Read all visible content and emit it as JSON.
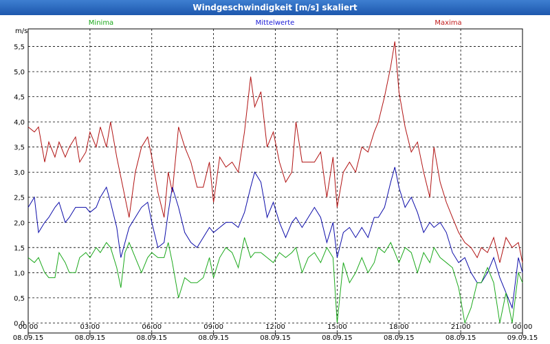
{
  "window": {
    "title": "Windgeschwindigkeit [m/s] skaliert"
  },
  "chart_data": {
    "type": "line",
    "title": "Windgeschwindigkeit [m/s] skaliert",
    "ylabel": "m/s",
    "xlabel": "",
    "ylim": [
      -0.2,
      5.85
    ],
    "xlim": [
      0,
      24
    ],
    "grid": true,
    "y_ticks": [
      {
        "value": 0.0,
        "label": "0,0"
      },
      {
        "value": 0.5,
        "label": "0,5"
      },
      {
        "value": 1.0,
        "label": "1,0"
      },
      {
        "value": 1.5,
        "label": "1,5"
      },
      {
        "value": 2.0,
        "label": "2,0"
      },
      {
        "value": 2.5,
        "label": "2,5"
      },
      {
        "value": 3.0,
        "label": "3,0"
      },
      {
        "value": 3.5,
        "label": "3,5"
      },
      {
        "value": 4.0,
        "label": "4,0"
      },
      {
        "value": 4.5,
        "label": "4,5"
      },
      {
        "value": 5.0,
        "label": "5,0"
      },
      {
        "value": 5.5,
        "label": "5,5"
      }
    ],
    "x_ticks": [
      {
        "value": 0,
        "time": "00:00",
        "date": "08.09.15"
      },
      {
        "value": 3,
        "time": "03:00",
        "date": "08.09.15"
      },
      {
        "value": 6,
        "time": "06:00",
        "date": "08.09.15"
      },
      {
        "value": 9,
        "time": "09:00",
        "date": "08.09.15"
      },
      {
        "value": 12,
        "time": "12:00",
        "date": "08.09.15"
      },
      {
        "value": 15,
        "time": "15:00",
        "date": "08.09.15"
      },
      {
        "value": 18,
        "time": "18:00",
        "date": "08.09.15"
      },
      {
        "value": 21,
        "time": "21:00",
        "date": "08.09.15"
      },
      {
        "value": 24,
        "time": "00:00",
        "date": "09.09.15"
      }
    ],
    "legend": [
      {
        "name": "Minima",
        "color": "#1aa81a",
        "position": "left"
      },
      {
        "name": "Mittelwerte",
        "color": "#1a1ad6",
        "position": "center"
      },
      {
        "name": "Maxima",
        "color": "#c01a1a",
        "position": "right"
      }
    ],
    "series": [
      {
        "name": "Maxima",
        "color": "#b01010",
        "points": [
          [
            0,
            3.9
          ],
          [
            0.3,
            3.8
          ],
          [
            0.5,
            3.9
          ],
          [
            0.8,
            3.2
          ],
          [
            1.0,
            3.6
          ],
          [
            1.3,
            3.3
          ],
          [
            1.5,
            3.6
          ],
          [
            1.8,
            3.3
          ],
          [
            2.0,
            3.5
          ],
          [
            2.3,
            3.7
          ],
          [
            2.5,
            3.2
          ],
          [
            2.8,
            3.4
          ],
          [
            3.0,
            3.8
          ],
          [
            3.3,
            3.5
          ],
          [
            3.5,
            3.9
          ],
          [
            3.8,
            3.5
          ],
          [
            4.0,
            4.0
          ],
          [
            4.3,
            3.3
          ],
          [
            4.5,
            2.9
          ],
          [
            4.7,
            2.5
          ],
          [
            4.9,
            2.1
          ],
          [
            5.2,
            3.0
          ],
          [
            5.5,
            3.5
          ],
          [
            5.8,
            3.7
          ],
          [
            6.0,
            3.3
          ],
          [
            6.3,
            2.6
          ],
          [
            6.6,
            2.1
          ],
          [
            6.8,
            3.0
          ],
          [
            7.0,
            2.6
          ],
          [
            7.3,
            3.9
          ],
          [
            7.6,
            3.5
          ],
          [
            7.9,
            3.2
          ],
          [
            8.2,
            2.7
          ],
          [
            8.5,
            2.7
          ],
          [
            8.8,
            3.2
          ],
          [
            9.0,
            2.4
          ],
          [
            9.3,
            3.3
          ],
          [
            9.6,
            3.1
          ],
          [
            9.9,
            3.2
          ],
          [
            10.2,
            3.0
          ],
          [
            10.5,
            3.8
          ],
          [
            10.8,
            4.9
          ],
          [
            11.0,
            4.3
          ],
          [
            11.3,
            4.6
          ],
          [
            11.6,
            3.5
          ],
          [
            11.9,
            3.8
          ],
          [
            12.2,
            3.2
          ],
          [
            12.5,
            2.8
          ],
          [
            12.8,
            3.0
          ],
          [
            13.0,
            4.0
          ],
          [
            13.3,
            3.2
          ],
          [
            13.6,
            3.2
          ],
          [
            13.9,
            3.2
          ],
          [
            14.2,
            3.4
          ],
          [
            14.5,
            2.5
          ],
          [
            14.8,
            3.3
          ],
          [
            15.0,
            2.3
          ],
          [
            15.3,
            3.0
          ],
          [
            15.6,
            3.2
          ],
          [
            15.9,
            3.0
          ],
          [
            16.2,
            3.5
          ],
          [
            16.5,
            3.4
          ],
          [
            16.8,
            3.8
          ],
          [
            17.0,
            4.0
          ],
          [
            17.3,
            4.5
          ],
          [
            17.6,
            5.1
          ],
          [
            17.8,
            5.6
          ],
          [
            18.0,
            4.6
          ],
          [
            18.3,
            3.9
          ],
          [
            18.6,
            3.4
          ],
          [
            18.9,
            3.6
          ],
          [
            19.2,
            3.0
          ],
          [
            19.5,
            2.5
          ],
          [
            19.7,
            3.5
          ],
          [
            20.0,
            2.8
          ],
          [
            20.3,
            2.4
          ],
          [
            20.6,
            2.1
          ],
          [
            20.9,
            1.8
          ],
          [
            21.2,
            1.6
          ],
          [
            21.5,
            1.5
          ],
          [
            21.8,
            1.3
          ],
          [
            22.0,
            1.5
          ],
          [
            22.3,
            1.4
          ],
          [
            22.6,
            1.7
          ],
          [
            22.9,
            1.2
          ],
          [
            23.2,
            1.7
          ],
          [
            23.5,
            1.5
          ],
          [
            23.8,
            1.6
          ],
          [
            24.0,
            1.2
          ]
        ]
      },
      {
        "name": "Mittelwerte",
        "color": "#0a0aa8",
        "points": [
          [
            0,
            2.3
          ],
          [
            0.3,
            2.5
          ],
          [
            0.5,
            1.8
          ],
          [
            0.8,
            2.0
          ],
          [
            1.0,
            2.1
          ],
          [
            1.3,
            2.3
          ],
          [
            1.5,
            2.4
          ],
          [
            1.8,
            2.0
          ],
          [
            2.0,
            2.1
          ],
          [
            2.3,
            2.3
          ],
          [
            2.5,
            2.3
          ],
          [
            2.8,
            2.3
          ],
          [
            3.0,
            2.2
          ],
          [
            3.3,
            2.3
          ],
          [
            3.5,
            2.5
          ],
          [
            3.8,
            2.7
          ],
          [
            4.0,
            2.4
          ],
          [
            4.3,
            1.9
          ],
          [
            4.5,
            1.3
          ],
          [
            4.7,
            1.6
          ],
          [
            4.9,
            1.9
          ],
          [
            5.2,
            2.1
          ],
          [
            5.5,
            2.3
          ],
          [
            5.8,
            2.4
          ],
          [
            6.0,
            2.0
          ],
          [
            6.3,
            1.5
          ],
          [
            6.6,
            1.6
          ],
          [
            6.8,
            2.2
          ],
          [
            7.0,
            2.7
          ],
          [
            7.3,
            2.3
          ],
          [
            7.6,
            1.8
          ],
          [
            7.9,
            1.6
          ],
          [
            8.2,
            1.5
          ],
          [
            8.5,
            1.7
          ],
          [
            8.8,
            1.9
          ],
          [
            9.0,
            1.8
          ],
          [
            9.3,
            1.9
          ],
          [
            9.6,
            2.0
          ],
          [
            9.9,
            2.0
          ],
          [
            10.2,
            1.9
          ],
          [
            10.5,
            2.2
          ],
          [
            10.8,
            2.7
          ],
          [
            11.0,
            3.0
          ],
          [
            11.3,
            2.8
          ],
          [
            11.6,
            2.1
          ],
          [
            11.9,
            2.4
          ],
          [
            12.2,
            2.0
          ],
          [
            12.5,
            1.7
          ],
          [
            12.8,
            2.0
          ],
          [
            13.0,
            2.1
          ],
          [
            13.3,
            1.9
          ],
          [
            13.6,
            2.1
          ],
          [
            13.9,
            2.3
          ],
          [
            14.2,
            2.1
          ],
          [
            14.5,
            1.6
          ],
          [
            14.8,
            2.0
          ],
          [
            15.0,
            1.3
          ],
          [
            15.3,
            1.8
          ],
          [
            15.6,
            1.9
          ],
          [
            15.9,
            1.7
          ],
          [
            16.2,
            1.9
          ],
          [
            16.5,
            1.7
          ],
          [
            16.8,
            2.1
          ],
          [
            17.0,
            2.1
          ],
          [
            17.3,
            2.3
          ],
          [
            17.6,
            2.8
          ],
          [
            17.8,
            3.1
          ],
          [
            18.0,
            2.7
          ],
          [
            18.3,
            2.3
          ],
          [
            18.6,
            2.5
          ],
          [
            18.9,
            2.2
          ],
          [
            19.2,
            1.8
          ],
          [
            19.5,
            2.0
          ],
          [
            19.7,
            1.9
          ],
          [
            20.0,
            2.0
          ],
          [
            20.3,
            1.8
          ],
          [
            20.6,
            1.4
          ],
          [
            20.9,
            1.2
          ],
          [
            21.2,
            1.3
          ],
          [
            21.5,
            1.0
          ],
          [
            21.8,
            0.8
          ],
          [
            22.0,
            0.8
          ],
          [
            22.3,
            1.0
          ],
          [
            22.6,
            1.3
          ],
          [
            22.9,
            0.9
          ],
          [
            23.2,
            0.6
          ],
          [
            23.5,
            0.3
          ],
          [
            23.8,
            1.3
          ],
          [
            24.0,
            1.0
          ]
        ]
      },
      {
        "name": "Minima",
        "color": "#1aa81a",
        "points": [
          [
            0,
            1.3
          ],
          [
            0.3,
            1.2
          ],
          [
            0.5,
            1.3
          ],
          [
            0.8,
            1.0
          ],
          [
            1.0,
            0.9
          ],
          [
            1.3,
            0.9
          ],
          [
            1.5,
            1.4
          ],
          [
            1.8,
            1.2
          ],
          [
            2.0,
            1.0
          ],
          [
            2.3,
            1.0
          ],
          [
            2.5,
            1.3
          ],
          [
            2.8,
            1.4
          ],
          [
            3.0,
            1.3
          ],
          [
            3.3,
            1.5
          ],
          [
            3.5,
            1.4
          ],
          [
            3.8,
            1.6
          ],
          [
            4.0,
            1.5
          ],
          [
            4.3,
            1.1
          ],
          [
            4.5,
            0.7
          ],
          [
            4.7,
            1.4
          ],
          [
            4.9,
            1.6
          ],
          [
            5.2,
            1.3
          ],
          [
            5.5,
            1.0
          ],
          [
            5.8,
            1.3
          ],
          [
            6.0,
            1.4
          ],
          [
            6.3,
            1.3
          ],
          [
            6.6,
            1.3
          ],
          [
            6.8,
            1.6
          ],
          [
            7.0,
            1.2
          ],
          [
            7.3,
            0.5
          ],
          [
            7.6,
            0.9
          ],
          [
            7.9,
            0.8
          ],
          [
            8.2,
            0.8
          ],
          [
            8.5,
            0.9
          ],
          [
            8.8,
            1.3
          ],
          [
            9.0,
            0.9
          ],
          [
            9.3,
            1.3
          ],
          [
            9.6,
            1.5
          ],
          [
            9.9,
            1.4
          ],
          [
            10.2,
            1.1
          ],
          [
            10.5,
            1.7
          ],
          [
            10.8,
            1.3
          ],
          [
            11.0,
            1.4
          ],
          [
            11.3,
            1.4
          ],
          [
            11.6,
            1.3
          ],
          [
            11.9,
            1.2
          ],
          [
            12.2,
            1.4
          ],
          [
            12.5,
            1.3
          ],
          [
            12.8,
            1.4
          ],
          [
            13.0,
            1.5
          ],
          [
            13.3,
            1.0
          ],
          [
            13.6,
            1.3
          ],
          [
            13.9,
            1.4
          ],
          [
            14.2,
            1.2
          ],
          [
            14.5,
            1.5
          ],
          [
            14.8,
            1.3
          ],
          [
            15.0,
            0.0
          ],
          [
            15.3,
            1.2
          ],
          [
            15.6,
            0.8
          ],
          [
            15.9,
            1.0
          ],
          [
            16.2,
            1.3
          ],
          [
            16.5,
            1.0
          ],
          [
            16.8,
            1.2
          ],
          [
            17.0,
            1.5
          ],
          [
            17.3,
            1.4
          ],
          [
            17.6,
            1.6
          ],
          [
            17.8,
            1.4
          ],
          [
            18.0,
            1.2
          ],
          [
            18.3,
            1.5
          ],
          [
            18.6,
            1.4
          ],
          [
            18.9,
            1.0
          ],
          [
            19.2,
            1.4
          ],
          [
            19.5,
            1.2
          ],
          [
            19.7,
            1.5
          ],
          [
            20.0,
            1.3
          ],
          [
            20.3,
            1.2
          ],
          [
            20.6,
            1.1
          ],
          [
            20.9,
            0.7
          ],
          [
            21.2,
            0.0
          ],
          [
            21.5,
            0.3
          ],
          [
            21.8,
            0.8
          ],
          [
            22.0,
            0.8
          ],
          [
            22.3,
            1.1
          ],
          [
            22.6,
            0.8
          ],
          [
            22.9,
            0.0
          ],
          [
            23.2,
            0.6
          ],
          [
            23.5,
            0.0
          ],
          [
            23.8,
            1.0
          ],
          [
            24.0,
            0.8
          ]
        ]
      }
    ]
  }
}
